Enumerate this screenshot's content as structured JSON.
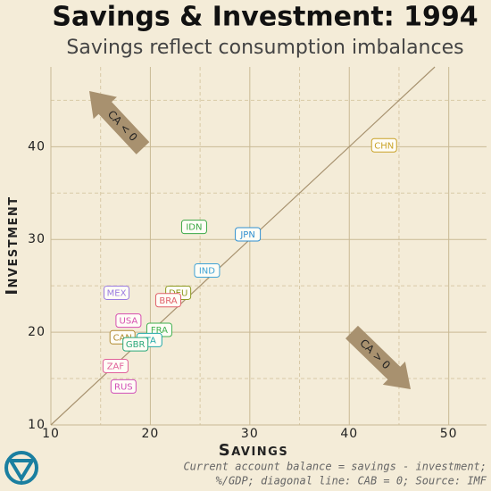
{
  "chart_data": {
    "type": "scatter",
    "title": "Savings & Investment: 1994",
    "subtitle": "Savings reflect consumption imbalances",
    "x_label": "Savings",
    "y_label": "Investment",
    "x": [
      43.5,
      24.4,
      29.8,
      25.7,
      16.6,
      22.8,
      21.8,
      17.8,
      17.2,
      20.9,
      19.9,
      18.5,
      16.5,
      17.3
    ],
    "values": [
      40.2,
      31.4,
      30.6,
      26.7,
      24.3,
      24.3,
      23.5,
      21.3,
      19.5,
      20.3,
      19.2,
      18.75,
      16.4,
      14.2
    ],
    "point_labels": [
      "CHN",
      "IDN",
      "JPN",
      "IND",
      "MEX",
      "DEU",
      "BRA",
      "USA",
      "CAN",
      "FRA",
      "ITA",
      "GBR",
      "ZAF",
      "RUS"
    ],
    "point_colors": [
      "#c9a227",
      "#3aa845",
      "#2f8fd0",
      "#3fa3d6",
      "#9a7be0",
      "#8d9a20",
      "#e0606a",
      "#d64fb0",
      "#b08a30",
      "#3fb04f",
      "#1fa8a8",
      "#2aa87a",
      "#e0609a",
      "#d04fb8"
    ],
    "xlim": [
      10,
      53.8
    ],
    "ylim": [
      10,
      48.6
    ],
    "xticks": [
      10,
      20,
      30,
      40,
      50
    ],
    "yticks": [
      10,
      20,
      30,
      40
    ],
    "minor_grid_x": [
      15,
      25,
      35,
      45
    ],
    "minor_grid_y": [
      15,
      25,
      35,
      45
    ],
    "grid": true,
    "annotations": [
      "CA < 0",
      "CA > 0"
    ],
    "caption": [
      "Current account balance = savings - investment;",
      "%/GDP; diagonal line: CAB = 0; Source: IMF"
    ]
  }
}
